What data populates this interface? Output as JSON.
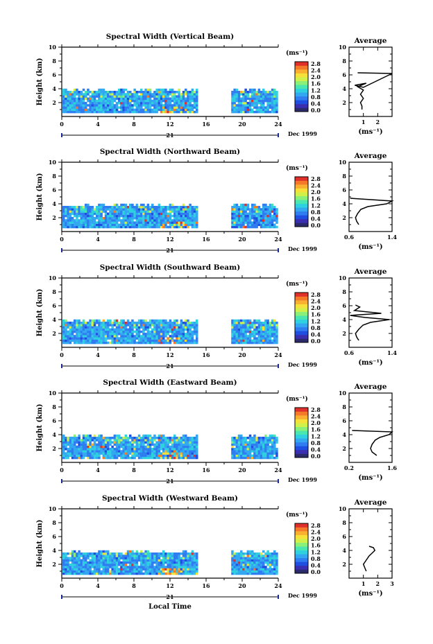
{
  "figure": {
    "xlabel": "Local Time",
    "date_label": "Dec 1999",
    "day_label": "21",
    "unit_label": "(ms⁻¹)",
    "average_title": "Average"
  },
  "colorbar": {
    "ticks": [
      "0.0",
      "0.4",
      "0.8",
      "1.2",
      "1.6",
      "2.0",
      "2.4",
      "2.8"
    ],
    "colors": [
      "#2b2b6b",
      "#3a2fb0",
      "#1f4fe0",
      "#2f7df0",
      "#33a8f0",
      "#2fd0e0",
      "#49e6b0",
      "#8af07a",
      "#d2f04a",
      "#f6e03a",
      "#f9b030",
      "#f47a2a",
      "#e0302a"
    ]
  },
  "chart_data": [
    {
      "type": "heatmap",
      "title": "Spectral Width (Vertical Beam)",
      "ylabel": "Height (km)",
      "xlim": [
        0,
        24
      ],
      "ylim": [
        0,
        10
      ],
      "x_ticks": [
        0,
        4,
        8,
        12,
        16,
        20,
        24
      ],
      "y_ticks": [
        2,
        4,
        6,
        8,
        10
      ],
      "data_top": 3.8,
      "gaps": [
        [
          15,
          18.7
        ]
      ],
      "avg": {
        "xlim": [
          0,
          3
        ],
        "x_ticks": [
          1,
          2
        ],
        "points": [
          [
            0.9,
            1.0
          ],
          [
            0.9,
            1.5
          ],
          [
            0.8,
            2.0
          ],
          [
            1.0,
            2.6
          ],
          [
            0.8,
            3.2
          ],
          [
            1.0,
            3.8
          ],
          [
            0.6,
            4.3
          ],
          [
            1.2,
            4.8
          ],
          [
            0.4,
            4.5
          ],
          [
            1.0,
            4.2
          ],
          [
            3.0,
            6.2
          ],
          [
            0.6,
            6.3
          ]
        ]
      }
    },
    {
      "type": "heatmap",
      "title": "Spectral Width (Northward Beam)",
      "ylabel": "Height (km)",
      "xlim": [
        0,
        24
      ],
      "ylim": [
        0,
        10
      ],
      "x_ticks": [
        0,
        4,
        8,
        12,
        16,
        20,
        24
      ],
      "y_ticks": [
        2,
        4,
        6,
        8,
        10
      ],
      "data_top": 3.8,
      "gaps": [
        [
          15,
          18.7
        ]
      ],
      "avg": {
        "xlim": [
          0.6,
          1.4
        ],
        "x_ticks": [
          0.6,
          1.4
        ],
        "points": [
          [
            0.78,
            1.0
          ],
          [
            0.74,
            1.5
          ],
          [
            0.72,
            2.0
          ],
          [
            0.76,
            2.6
          ],
          [
            0.82,
            3.2
          ],
          [
            0.95,
            3.6
          ],
          [
            1.3,
            4.0
          ],
          [
            1.4,
            4.4
          ],
          [
            0.62,
            4.8
          ]
        ]
      }
    },
    {
      "type": "heatmap",
      "title": "Spectral Width (Southward Beam)",
      "ylabel": "Height (km)",
      "xlim": [
        0,
        24
      ],
      "ylim": [
        0,
        10
      ],
      "x_ticks": [
        0,
        4,
        8,
        12,
        16,
        20,
        24
      ],
      "y_ticks": [
        2,
        4,
        6,
        8,
        10
      ],
      "data_top": 3.9,
      "gaps": [
        [
          15,
          18.7
        ]
      ],
      "avg": {
        "xlim": [
          0.6,
          1.4
        ],
        "x_ticks": [
          0.6,
          1.4
        ],
        "points": [
          [
            0.78,
            1.0
          ],
          [
            0.74,
            1.5
          ],
          [
            0.72,
            2.0
          ],
          [
            0.78,
            2.6
          ],
          [
            0.86,
            3.2
          ],
          [
            1.0,
            3.6
          ],
          [
            1.35,
            4.0
          ],
          [
            0.9,
            4.3
          ],
          [
            0.62,
            4.6
          ],
          [
            1.2,
            4.9
          ],
          [
            0.7,
            5.3
          ],
          [
            0.8,
            5.8
          ],
          [
            0.72,
            6.1
          ]
        ]
      }
    },
    {
      "type": "heatmap",
      "title": "Spectral Width (Eastward Beam)",
      "ylabel": "Height (km)",
      "xlim": [
        0,
        24
      ],
      "ylim": [
        0,
        10
      ],
      "x_ticks": [
        0,
        4,
        8,
        12,
        16,
        20,
        24
      ],
      "y_ticks": [
        2,
        4,
        6,
        8,
        10
      ],
      "data_top": 3.8,
      "gaps": [
        [
          15,
          18.7
        ]
      ],
      "avg": {
        "xlim": [
          0.2,
          1.6
        ],
        "x_ticks": [
          0.2,
          1.6
        ],
        "points": [
          [
            1.1,
            1.0
          ],
          [
            0.95,
            1.5
          ],
          [
            0.9,
            2.0
          ],
          [
            0.95,
            2.6
          ],
          [
            1.05,
            3.2
          ],
          [
            1.2,
            3.6
          ],
          [
            1.5,
            4.0
          ],
          [
            1.6,
            4.4
          ],
          [
            0.3,
            4.6
          ]
        ]
      }
    },
    {
      "type": "heatmap",
      "title": "Spectral Width (Westward Beam)",
      "ylabel": "Height (km)",
      "xlim": [
        0,
        24
      ],
      "ylim": [
        0,
        10
      ],
      "x_ticks": [
        0,
        4,
        8,
        12,
        16,
        20,
        24
      ],
      "y_ticks": [
        2,
        4,
        6,
        8,
        10
      ],
      "data_top": 3.8,
      "gaps": [
        [
          15,
          18.7
        ]
      ],
      "avg": {
        "xlim": [
          0,
          3
        ],
        "x_ticks": [
          1,
          2,
          3
        ],
        "points": [
          [
            1.2,
            1.0
          ],
          [
            1.1,
            1.5
          ],
          [
            1.0,
            2.0
          ],
          [
            1.2,
            2.6
          ],
          [
            1.4,
            3.2
          ],
          [
            1.6,
            3.6
          ],
          [
            1.8,
            4.0
          ],
          [
            1.7,
            4.4
          ],
          [
            1.4,
            4.6
          ]
        ]
      }
    }
  ]
}
